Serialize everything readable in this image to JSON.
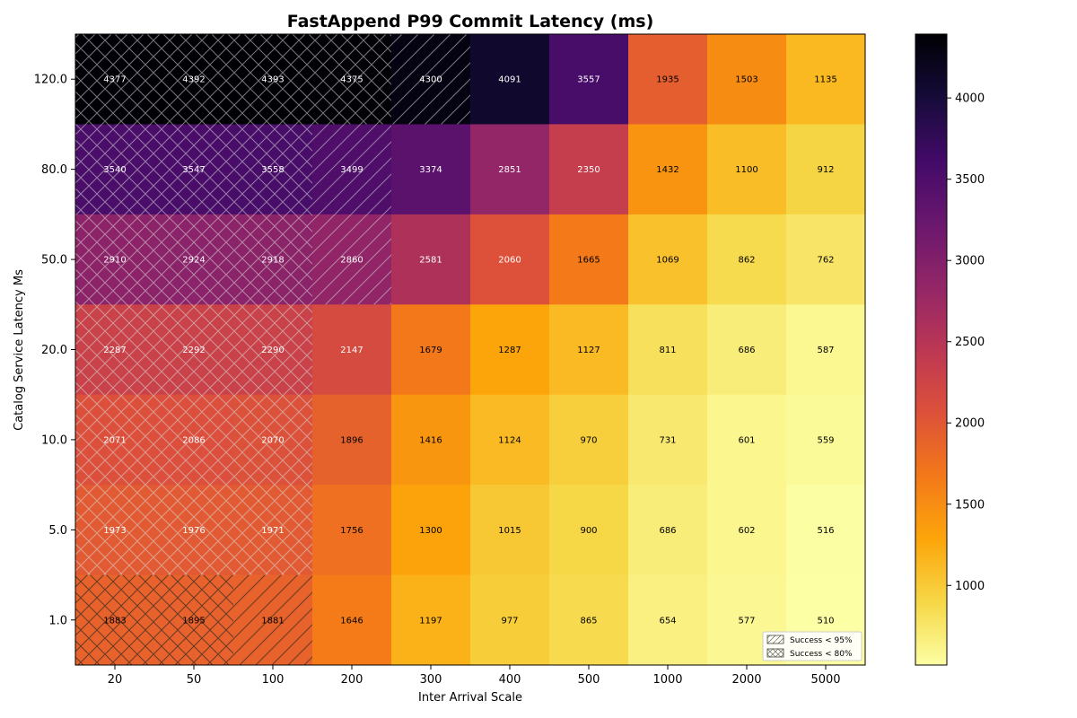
{
  "chart_data": {
    "type": "heatmap",
    "title": "FastAppend P99 Commit Latency (ms)",
    "xlabel": "Inter Arrival Scale",
    "ylabel": "Catalog Service Latency Ms",
    "x_categories": [
      "20",
      "50",
      "100",
      "200",
      "300",
      "400",
      "500",
      "1000",
      "2000",
      "5000"
    ],
    "y_categories": [
      "120.0",
      "80.0",
      "50.0",
      "20.0",
      "10.0",
      "5.0",
      "1.0"
    ],
    "values": [
      [
        4377,
        4392,
        4393,
        4375,
        4300,
        4091,
        3557,
        1935,
        1503,
        1135
      ],
      [
        3540,
        3547,
        3558,
        3499,
        3374,
        2851,
        2350,
        1432,
        1100,
        912
      ],
      [
        2910,
        2924,
        2918,
        2860,
        2581,
        2060,
        1665,
        1069,
        862,
        762
      ],
      [
        2287,
        2292,
        2290,
        2147,
        1679,
        1287,
        1127,
        811,
        686,
        587
      ],
      [
        2071,
        2086,
        2070,
        1896,
        1416,
        1124,
        970,
        731,
        601,
        559
      ],
      [
        1973,
        1976,
        1971,
        1756,
        1300,
        1015,
        900,
        686,
        602,
        516
      ],
      [
        1883,
        1895,
        1881,
        1646,
        1197,
        977,
        865,
        654,
        577,
        510
      ]
    ],
    "hatch": [
      [
        "x",
        "x",
        "x",
        "x",
        "/",
        "",
        "",
        "",
        "",
        ""
      ],
      [
        "x",
        "x",
        "x",
        "/",
        "",
        "",
        "",
        "",
        "",
        ""
      ],
      [
        "x",
        "x",
        "x",
        "/",
        "",
        "",
        "",
        "",
        "",
        ""
      ],
      [
        "x",
        "x",
        "x",
        "",
        "",
        "",
        "",
        "",
        "",
        ""
      ],
      [
        "x",
        "x",
        "x",
        "",
        "",
        "",
        "",
        "",
        "",
        ""
      ],
      [
        "x",
        "x",
        "x",
        "",
        "",
        "",
        "",
        "",
        "",
        ""
      ],
      [
        "x",
        "x",
        "/",
        "",
        "",
        "",
        "",
        "",
        "",
        ""
      ]
    ],
    "colormap": "inferno_r",
    "vmin": 510,
    "vmax": 4393,
    "colorbar_ticks": [
      1000,
      1500,
      2000,
      2500,
      3000,
      3500,
      4000
    ],
    "legend": {
      "placement": "lower-right",
      "entries": [
        {
          "label": "Success < 95%",
          "hatch": "/"
        },
        {
          "label": "Success < 80%",
          "hatch": "x"
        }
      ]
    },
    "grid": false
  }
}
